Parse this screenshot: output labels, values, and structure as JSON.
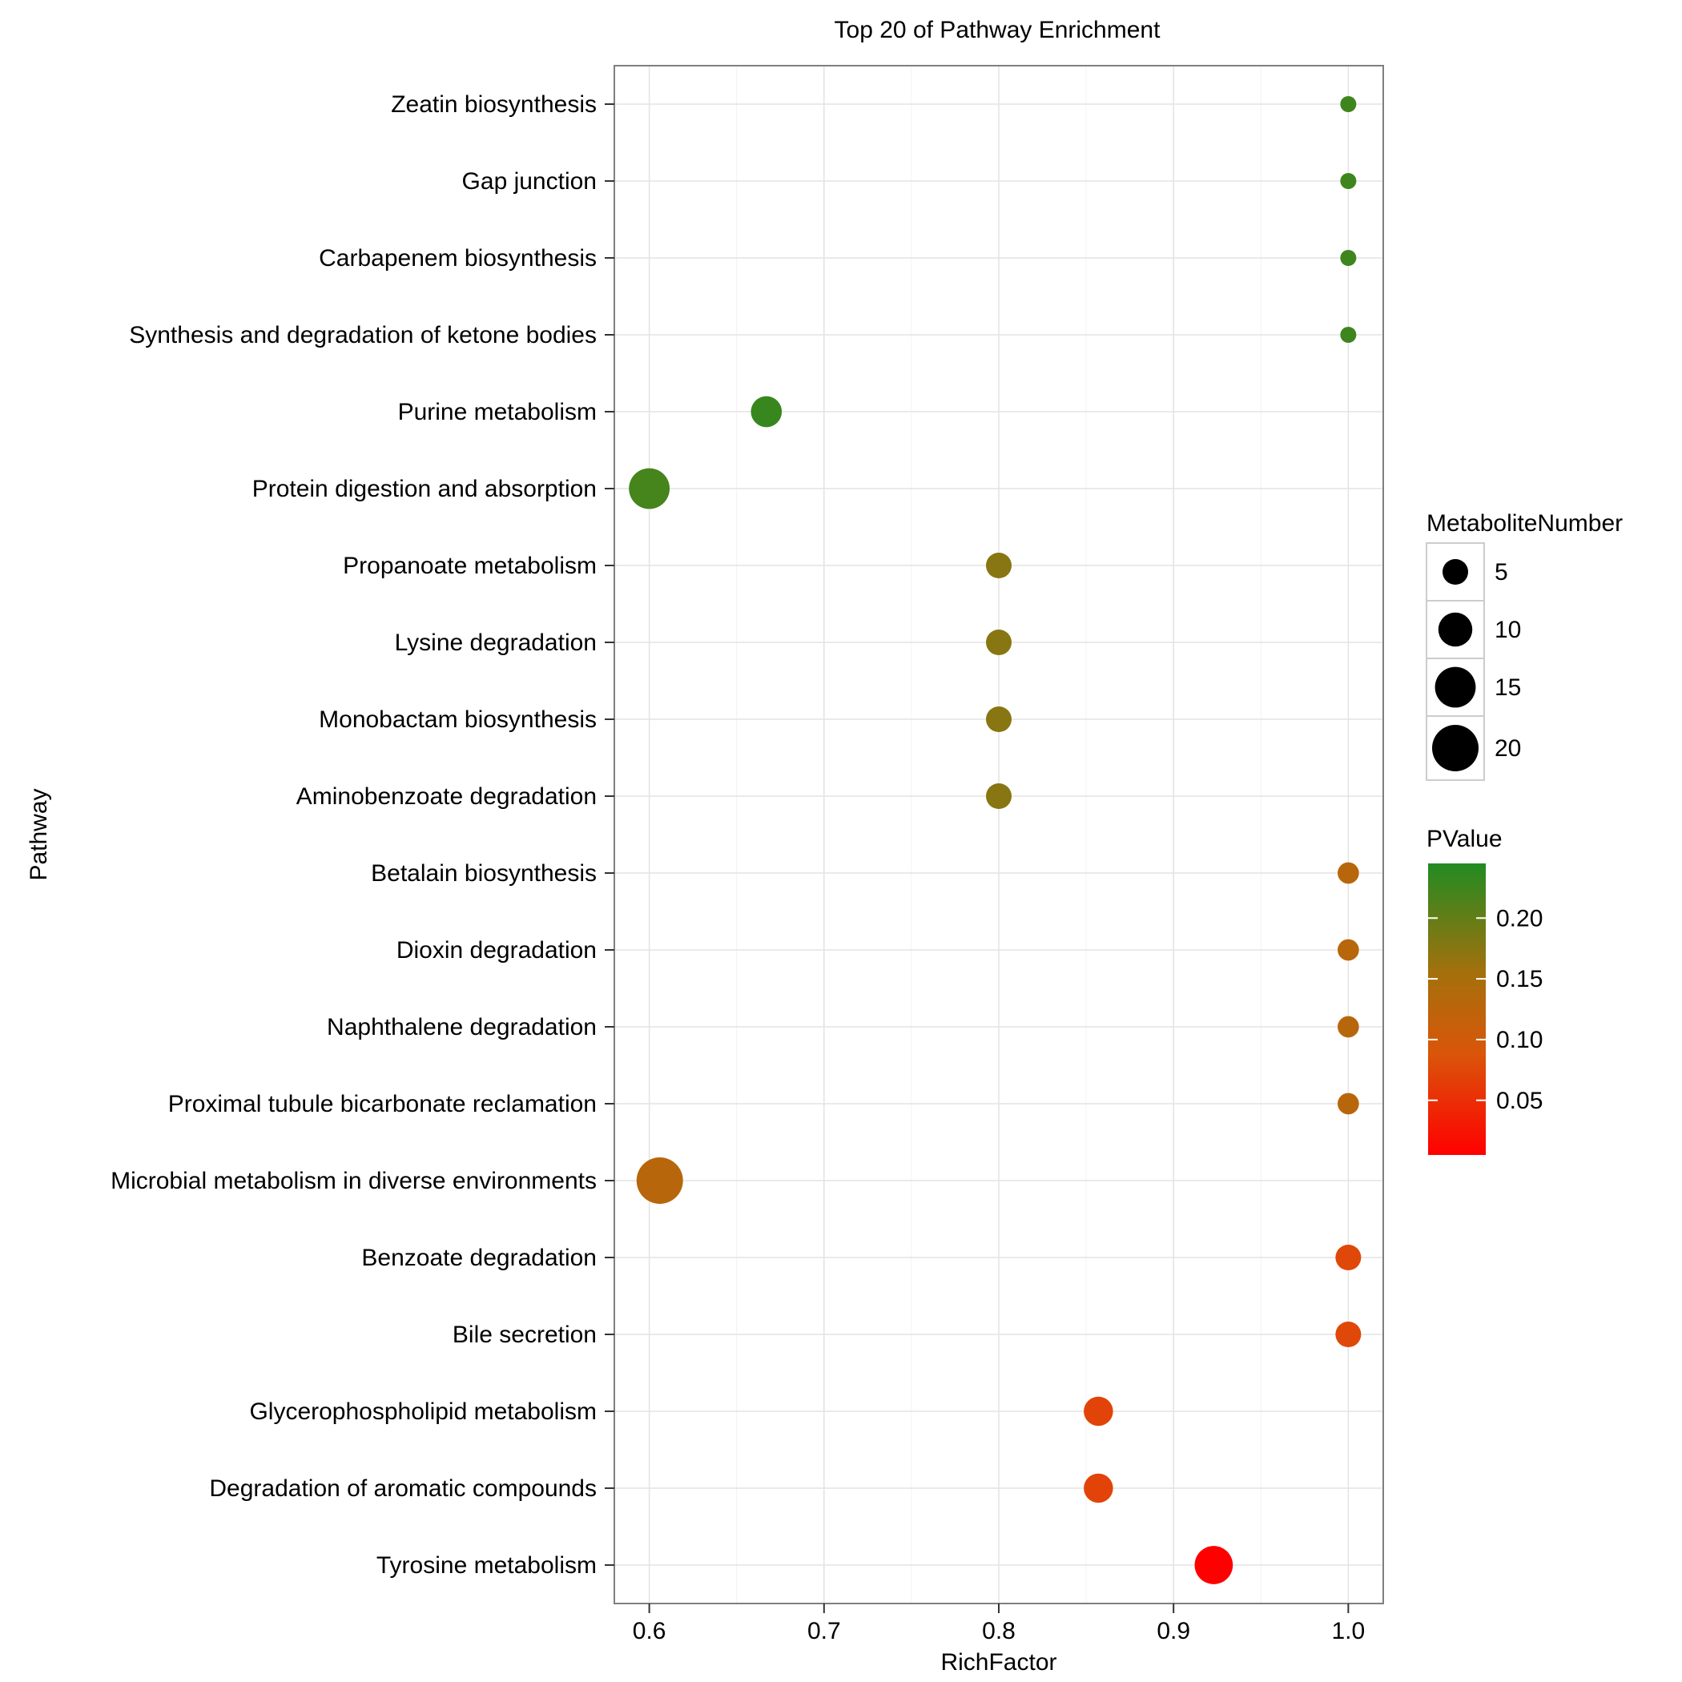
{
  "chart_data": {
    "type": "scatter",
    "title": "Top 20 of Pathway Enrichment",
    "xlabel": "RichFactor",
    "ylabel": "Pathway",
    "xlim": [
      0.58,
      1.02
    ],
    "xticks": [
      "0.6",
      "0.7",
      "0.8",
      "0.9",
      "1.0"
    ],
    "grid": true,
    "legend_position": "right",
    "points": [
      {
        "pathway": "Zeatin biosynthesis",
        "rich_factor": 1.0,
        "metabolite_number": 1,
        "p_value": 0.225
      },
      {
        "pathway": "Gap junction",
        "rich_factor": 1.0,
        "metabolite_number": 1,
        "p_value": 0.225
      },
      {
        "pathway": "Carbapenem biosynthesis",
        "rich_factor": 1.0,
        "metabolite_number": 1,
        "p_value": 0.225
      },
      {
        "pathway": "Synthesis and degradation of ketone bodies",
        "rich_factor": 1.0,
        "metabolite_number": 1,
        "p_value": 0.225
      },
      {
        "pathway": "Purine metabolism",
        "rich_factor": 0.667,
        "metabolite_number": 8,
        "p_value": 0.23
      },
      {
        "pathway": "Protein digestion and absorption",
        "rich_factor": 0.6,
        "metabolite_number": 15,
        "p_value": 0.22
      },
      {
        "pathway": "Propanoate metabolism",
        "rich_factor": 0.8,
        "metabolite_number": 5,
        "p_value": 0.175
      },
      {
        "pathway": "Lysine degradation",
        "rich_factor": 0.8,
        "metabolite_number": 5,
        "p_value": 0.175
      },
      {
        "pathway": "Monobactam biosynthesis",
        "rich_factor": 0.8,
        "metabolite_number": 5,
        "p_value": 0.175
      },
      {
        "pathway": "Aminobenzoate degradation",
        "rich_factor": 0.8,
        "metabolite_number": 5,
        "p_value": 0.175
      },
      {
        "pathway": "Betalain biosynthesis",
        "rich_factor": 1.0,
        "metabolite_number": 3,
        "p_value": 0.13
      },
      {
        "pathway": "Dioxin degradation",
        "rich_factor": 1.0,
        "metabolite_number": 3,
        "p_value": 0.13
      },
      {
        "pathway": "Naphthalene degradation",
        "rich_factor": 1.0,
        "metabolite_number": 3,
        "p_value": 0.13
      },
      {
        "pathway": "Proximal tubule bicarbonate reclamation",
        "rich_factor": 1.0,
        "metabolite_number": 3,
        "p_value": 0.13
      },
      {
        "pathway": "Microbial metabolism in diverse environments",
        "rich_factor": 0.606,
        "metabolite_number": 20,
        "p_value": 0.13
      },
      {
        "pathway": "Benzoate degradation",
        "rich_factor": 1.0,
        "metabolite_number": 5,
        "p_value": 0.075
      },
      {
        "pathway": "Bile secretion",
        "rich_factor": 1.0,
        "metabolite_number": 5,
        "p_value": 0.075
      },
      {
        "pathway": "Glycerophospholipid metabolism",
        "rich_factor": 0.857,
        "metabolite_number": 7,
        "p_value": 0.07
      },
      {
        "pathway": "Degradation of aromatic compounds",
        "rich_factor": 0.857,
        "metabolite_number": 7,
        "p_value": 0.07
      },
      {
        "pathway": "Tyrosine metabolism",
        "rich_factor": 0.923,
        "metabolite_number": 13,
        "p_value": 0.005
      }
    ],
    "size_legend": {
      "title": "MetaboliteNumber",
      "values": [
        5,
        10,
        15,
        20
      ],
      "labels": [
        "5",
        "10",
        "15",
        "20"
      ]
    },
    "color_legend": {
      "title": "PValue",
      "range": [
        0.005,
        0.245
      ],
      "ticks": [
        0.05,
        0.1,
        0.15,
        0.2
      ],
      "tick_labels": [
        "0.05",
        "0.10",
        "0.15",
        "0.20"
      ],
      "low_color": "#ff0000",
      "mid_color": "#a5700c",
      "high_color": "#228b22"
    }
  }
}
